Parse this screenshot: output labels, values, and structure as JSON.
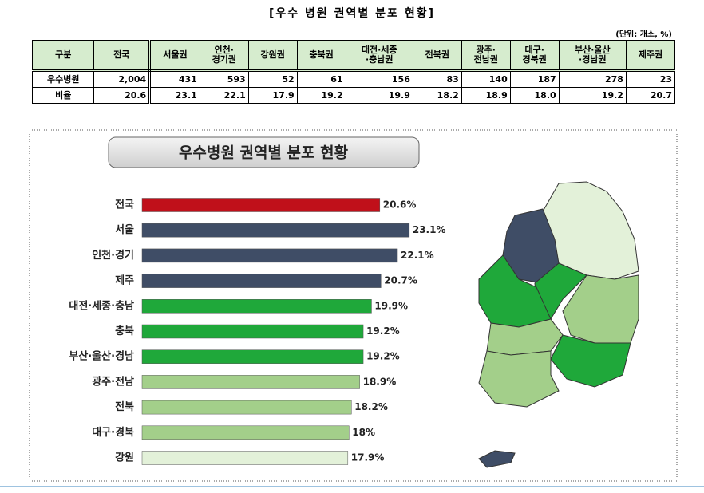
{
  "header": {
    "title": "[우수 병원 권역별 분포 현황]",
    "unit": "(단위: 개소, %)"
  },
  "table": {
    "headers": [
      "구분",
      "전국",
      "서울권",
      "인천·\n경기권",
      "강원권",
      "충북권",
      "대전·세종\n·충남권",
      "전북권",
      "광주·\n전남권",
      "대구·\n경북권",
      "부산·울산\n·경남권",
      "제주권"
    ],
    "rows": [
      [
        "우수병원",
        "2,004",
        "431",
        "593",
        "52",
        "61",
        "156",
        "83",
        "140",
        "187",
        "278",
        "23"
      ],
      [
        "비율",
        "20.6",
        "23.1",
        "22.1",
        "17.9",
        "19.2",
        "19.9",
        "18.2",
        "18.9",
        "18.0",
        "19.2",
        "20.7"
      ]
    ]
  },
  "chart_data": {
    "type": "bar",
    "orientation": "horizontal",
    "title": "우수병원 권역별 분포 현황",
    "categories": [
      "전국",
      "서울",
      "인천·경기",
      "제주",
      "대전·세종·충남",
      "충북",
      "부산·울산·경남",
      "광주·전남",
      "전북",
      "대구·경북",
      "강원"
    ],
    "values": [
      20.6,
      23.1,
      22.1,
      20.7,
      19.9,
      19.2,
      19.2,
      18.9,
      18.2,
      18,
      17.9
    ],
    "value_labels": [
      "20.6%",
      "23.1%",
      "22.1%",
      "20.7%",
      "19.9%",
      "19.2%",
      "19.2%",
      "18.9%",
      "18.2%",
      "18%",
      "17.9%"
    ],
    "colors": [
      "#c0101a",
      "#3f4d66",
      "#3f4d66",
      "#3f4d66",
      "#1fa83a",
      "#1fa83a",
      "#1fa83a",
      "#a3cf8a",
      "#a3cf8a",
      "#a3cf8a",
      "#e3f1d9"
    ],
    "xlim": [
      0.5,
      25
    ]
  }
}
